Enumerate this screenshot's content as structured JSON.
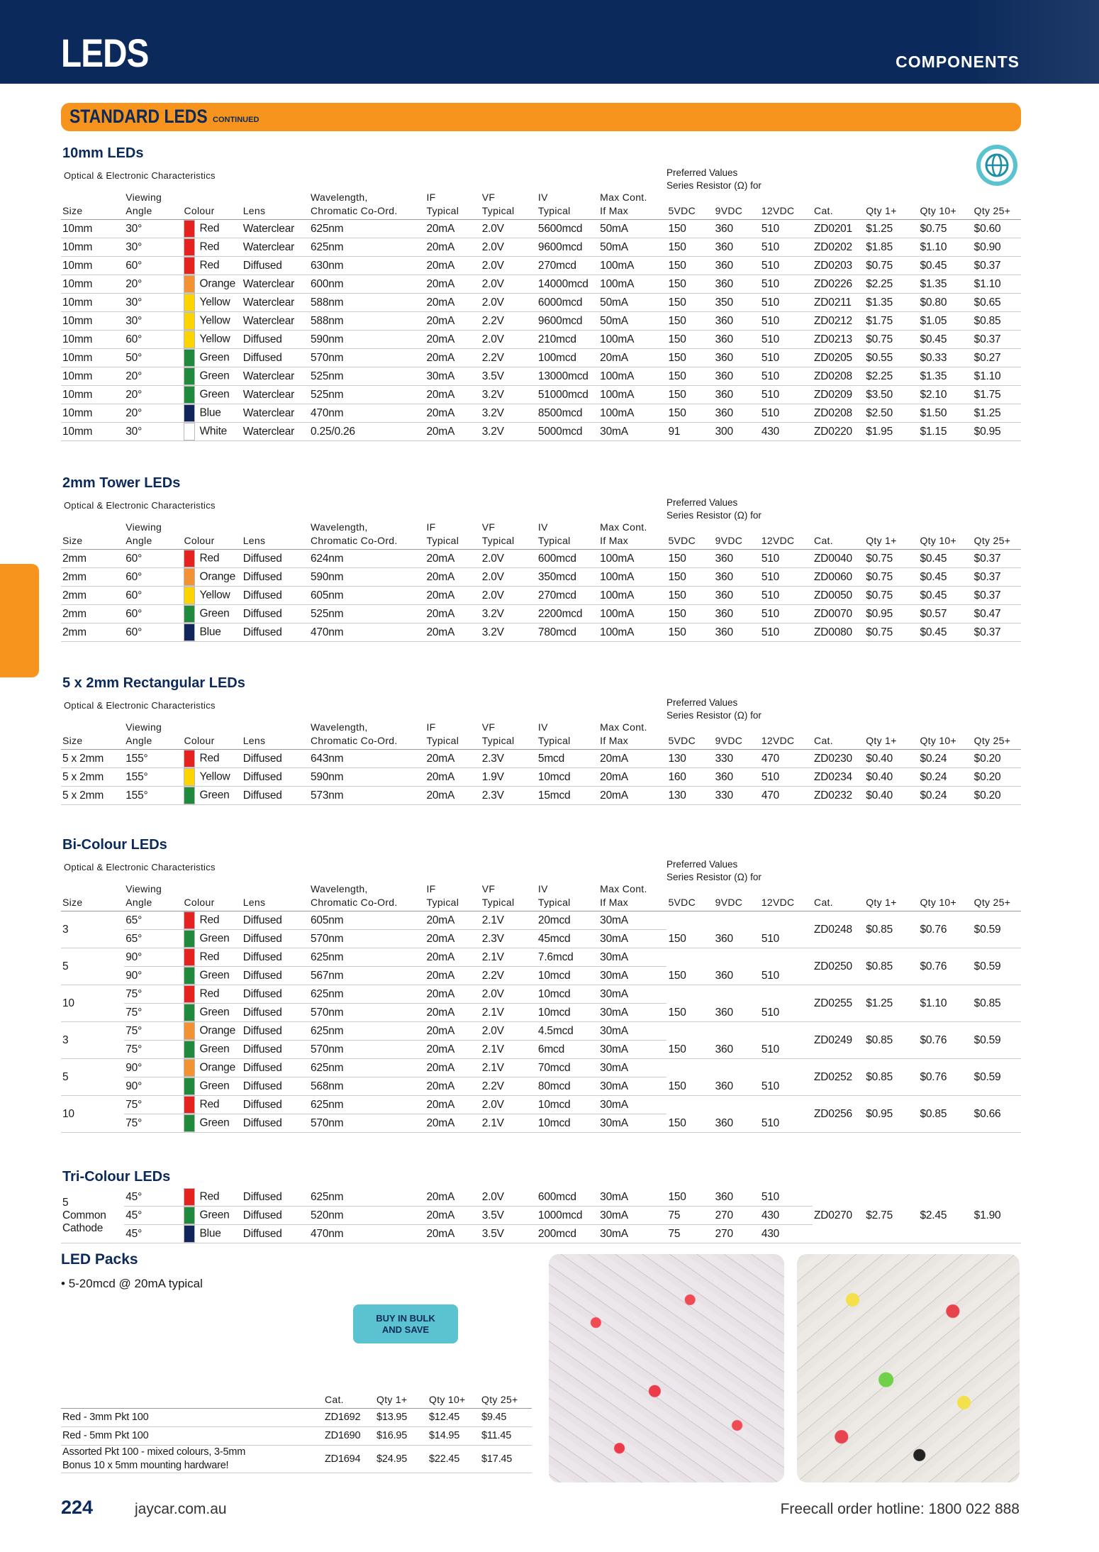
{
  "header": {
    "title": "LEDS",
    "section": "COMPONENTS"
  },
  "banner": {
    "title": "STANDARD LEDS",
    "note": "CONTINUED"
  },
  "sections": [
    {
      "title": "10mm LEDs",
      "subtitle": "Optical & Electronic Characteristics",
      "preferred": "Preferred Values\nSeries Resistor (Ω) for",
      "headers": [
        "Size",
        "Viewing\nAngle",
        "Colour",
        "Lens",
        "Wavelength,\nChromatic Co-Ord.",
        "IF\nTypical",
        "VF\nTypical",
        "IV\nTypical",
        "Max Cont.\nIf Max",
        "5VDC",
        "9VDC",
        "12VDC",
        "Cat.",
        "Qty 1+",
        "Qty 10+",
        "Qty 25+"
      ],
      "rows": [
        {
          "swatch": "#e42320",
          "cells": [
            "10mm",
            "30°",
            "Red",
            "Waterclear",
            "625nm",
            "20mA",
            "2.0V",
            "5600mcd",
            "50mA",
            "150",
            "360",
            "510",
            "ZD0201",
            "$1.25",
            "$0.75",
            "$0.60"
          ]
        },
        {
          "swatch": "#e42320",
          "cells": [
            "10mm",
            "30°",
            "Red",
            "Waterclear",
            "625nm",
            "20mA",
            "2.0V",
            "9600mcd",
            "50mA",
            "150",
            "360",
            "510",
            "ZD0202",
            "$1.85",
            "$1.10",
            "$0.90"
          ]
        },
        {
          "swatch": "#e42320",
          "cells": [
            "10mm",
            "60°",
            "Red",
            "Diffused",
            "630nm",
            "20mA",
            "2.0V",
            "270mcd",
            "100mA",
            "150",
            "360",
            "510",
            "ZD0203",
            "$0.75",
            "$0.45",
            "$0.37"
          ]
        },
        {
          "swatch": "#f39233",
          "cells": [
            "10mm",
            "20°",
            "Orange",
            "Waterclear",
            "600nm",
            "20mA",
            "2.0V",
            "14000mcd",
            "100mA",
            "150",
            "360",
            "510",
            "ZD0226",
            "$2.25",
            "$1.35",
            "$1.10"
          ]
        },
        {
          "swatch": "#fcd500",
          "cells": [
            "10mm",
            "30°",
            "Yellow",
            "Waterclear",
            "588nm",
            "20mA",
            "2.0V",
            "6000mcd",
            "50mA",
            "150",
            "350",
            "510",
            "ZD0211",
            "$1.35",
            "$0.80",
            "$0.65"
          ]
        },
        {
          "swatch": "#fcd500",
          "cells": [
            "10mm",
            "30°",
            "Yellow",
            "Waterclear",
            "588nm",
            "20mA",
            "2.2V",
            "9600mcd",
            "50mA",
            "150",
            "360",
            "510",
            "ZD0212",
            "$1.75",
            "$1.05",
            "$0.85"
          ]
        },
        {
          "swatch": "#fcd500",
          "cells": [
            "10mm",
            "60°",
            "Yellow",
            "Diffused",
            "590nm",
            "20mA",
            "2.0V",
            "210mcd",
            "100mA",
            "150",
            "360",
            "510",
            "ZD0213",
            "$0.75",
            "$0.45",
            "$0.37"
          ]
        },
        {
          "swatch": "#1f8a3c",
          "cells": [
            "10mm",
            "50°",
            "Green",
            "Diffused",
            "570nm",
            "20mA",
            "2.2V",
            "100mcd",
            "20mA",
            "150",
            "360",
            "510",
            "ZD0205",
            "$0.55",
            "$0.33",
            "$0.27"
          ]
        },
        {
          "swatch": "#1f8a3c",
          "cells": [
            "10mm",
            "20°",
            "Green",
            "Waterclear",
            "525nm",
            "30mA",
            "3.5V",
            "13000mcd",
            "100mA",
            "150",
            "360",
            "510",
            "ZD0208",
            "$2.25",
            "$1.35",
            "$1.10"
          ]
        },
        {
          "swatch": "#1f8a3c",
          "cells": [
            "10mm",
            "20°",
            "Green",
            "Waterclear",
            "525nm",
            "20mA",
            "3.2V",
            "51000mcd",
            "100mA",
            "150",
            "360",
            "510",
            "ZD0209",
            "$3.50",
            "$2.10",
            "$1.75"
          ]
        },
        {
          "swatch": "#10265a",
          "cells": [
            "10mm",
            "20°",
            "Blue",
            "Waterclear",
            "470nm",
            "20mA",
            "3.2V",
            "8500mcd",
            "100mA",
            "150",
            "360",
            "510",
            "ZD0208",
            "$2.50",
            "$1.50",
            "$1.25"
          ]
        },
        {
          "swatch": "#ffffff",
          "cells": [
            "10mm",
            "30°",
            "White",
            "Waterclear",
            "0.25/0.26",
            "20mA",
            "3.2V",
            "5000mcd",
            "30mA",
            "91",
            "300",
            "430",
            "ZD0220",
            "$1.95",
            "$1.15",
            "$0.95"
          ]
        }
      ]
    },
    {
      "title": "2mm Tower LEDs",
      "subtitle": "Optical & Electronic Characteristics",
      "preferred": "Preferred Values\nSeries Resistor (Ω) for",
      "headers": [
        "Size",
        "Viewing\nAngle",
        "Colour",
        "Lens",
        "Wavelength,\nChromatic Co-Ord.",
        "IF\nTypical",
        "VF\nTypical",
        "IV\nTypical",
        "Max Cont.\nIf Max",
        "5VDC",
        "9VDC",
        "12VDC",
        "Cat.",
        "Qty 1+",
        "Qty 10+",
        "Qty 25+"
      ],
      "rows": [
        {
          "swatch": "#e42320",
          "cells": [
            "2mm",
            "60°",
            "Red",
            "Diffused",
            "624nm",
            "20mA",
            "2.0V",
            "600mcd",
            "100mA",
            "150",
            "360",
            "510",
            "ZD0040",
            "$0.75",
            "$0.45",
            "$0.37"
          ]
        },
        {
          "swatch": "#f39233",
          "cells": [
            "2mm",
            "60°",
            "Orange",
            "Diffused",
            "590nm",
            "20mA",
            "2.0V",
            "350mcd",
            "100mA",
            "150",
            "360",
            "510",
            "ZD0060",
            "$0.75",
            "$0.45",
            "$0.37"
          ]
        },
        {
          "swatch": "#fcd500",
          "cells": [
            "2mm",
            "60°",
            "Yellow",
            "Diffused",
            "605nm",
            "20mA",
            "2.0V",
            "270mcd",
            "100mA",
            "150",
            "360",
            "510",
            "ZD0050",
            "$0.75",
            "$0.45",
            "$0.37"
          ]
        },
        {
          "swatch": "#1f8a3c",
          "cells": [
            "2mm",
            "60°",
            "Green",
            "Diffused",
            "525nm",
            "20mA",
            "3.2V",
            "2200mcd",
            "100mA",
            "150",
            "360",
            "510",
            "ZD0070",
            "$0.95",
            "$0.57",
            "$0.47"
          ]
        },
        {
          "swatch": "#10265a",
          "cells": [
            "2mm",
            "60°",
            "Blue",
            "Diffused",
            "470nm",
            "20mA",
            "3.2V",
            "780mcd",
            "100mA",
            "150",
            "360",
            "510",
            "ZD0080",
            "$0.75",
            "$0.45",
            "$0.37"
          ]
        }
      ]
    },
    {
      "title": "5 x 2mm Rectangular LEDs",
      "subtitle": "Optical & Electronic Characteristics",
      "preferred": "Preferred Values\nSeries Resistor (Ω) for",
      "headers": [
        "Size",
        "Viewing\nAngle",
        "Colour",
        "Lens",
        "Wavelength,\nChromatic Co-Ord.",
        "IF\nTypical",
        "VF\nTypical",
        "IV\nTypical",
        "Max Cont.\nIf Max",
        "5VDC",
        "9VDC",
        "12VDC",
        "Cat.",
        "Qty 1+",
        "Qty 10+",
        "Qty 25+"
      ],
      "rows": [
        {
          "swatch": "#e42320",
          "cells": [
            "5 x 2mm",
            "155°",
            "Red",
            "Diffused",
            "643nm",
            "20mA",
            "2.3V",
            "5mcd",
            "20mA",
            "130",
            "330",
            "470",
            "ZD0230",
            "$0.40",
            "$0.24",
            "$0.20"
          ]
        },
        {
          "swatch": "#fcd500",
          "cells": [
            "5 x 2mm",
            "155°",
            "Yellow",
            "Diffused",
            "590nm",
            "20mA",
            "1.9V",
            "10mcd",
            "20mA",
            "160",
            "360",
            "510",
            "ZD0234",
            "$0.40",
            "$0.24",
            "$0.20"
          ]
        },
        {
          "swatch": "#1f8a3c",
          "cells": [
            "5 x 2mm",
            "155°",
            "Green",
            "Diffused",
            "573nm",
            "20mA",
            "2.3V",
            "15mcd",
            "20mA",
            "130",
            "330",
            "470",
            "ZD0232",
            "$0.40",
            "$0.24",
            "$0.20"
          ]
        }
      ]
    },
    {
      "title": "Bi-Colour LEDs",
      "subtitle": "Optical & Electronic Characteristics",
      "preferred": "Preferred Values\nSeries Resistor (Ω) for",
      "headers": [
        "Size",
        "Viewing\nAngle",
        "Colour",
        "Lens",
        "Wavelength,\nChromatic Co-Ord.",
        "IF\nTypical",
        "VF\nTypical",
        "IV\nTypical",
        "Max Cont.\nIf Max",
        "5VDC",
        "9VDC",
        "12VDC",
        "Cat.",
        "Qty 1+",
        "Qty 10+",
        "Qty 25+"
      ],
      "groups": [
        {
          "size": "3",
          "cat": "ZD0248",
          "prices": [
            "$0.85",
            "$0.76",
            "$0.59"
          ],
          "rows": [
            {
              "swatch": "#e42320",
              "cells": [
                "65°",
                "Red",
                "Diffused",
                "605nm",
                "20mA",
                "2.1V",
                "20mcd",
                "30mA"
              ]
            },
            {
              "swatch": "#1f8a3c",
              "cells": [
                "65°",
                "Green",
                "Diffused",
                "570nm",
                "20mA",
                "2.3V",
                "45mcd",
                "30mA"
              ],
              "resistors": [
                "150",
                "360",
                "510"
              ]
            }
          ]
        },
        {
          "size": "5",
          "cat": "ZD0250",
          "prices": [
            "$0.85",
            "$0.76",
            "$0.59"
          ],
          "rows": [
            {
              "swatch": "#e42320",
              "cells": [
                "90°",
                "Red",
                "Diffused",
                "625nm",
                "20mA",
                "2.1V",
                "7.6mcd",
                "30mA"
              ]
            },
            {
              "swatch": "#1f8a3c",
              "cells": [
                "90°",
                "Green",
                "Diffused",
                "567nm",
                "20mA",
                "2.2V",
                "10mcd",
                "30mA"
              ],
              "resistors": [
                "150",
                "360",
                "510"
              ]
            }
          ]
        },
        {
          "size": "10",
          "cat": "ZD0255",
          "prices": [
            "$1.25",
            "$1.10",
            "$0.85"
          ],
          "rows": [
            {
              "swatch": "#e42320",
              "cells": [
                "75°",
                "Red",
                "Diffused",
                "625nm",
                "20mA",
                "2.0V",
                "10mcd",
                "30mA"
              ]
            },
            {
              "swatch": "#1f8a3c",
              "cells": [
                "75°",
                "Green",
                "Diffused",
                "570nm",
                "20mA",
                "2.1V",
                "10mcd",
                "30mA"
              ],
              "resistors": [
                "150",
                "360",
                "510"
              ]
            }
          ]
        },
        {
          "size": "3",
          "cat": "ZD0249",
          "prices": [
            "$0.85",
            "$0.76",
            "$0.59"
          ],
          "rows": [
            {
              "swatch": "#f39233",
              "cells": [
                "75°",
                "Orange",
                "Diffused",
                "625nm",
                "20mA",
                "2.0V",
                "4.5mcd",
                "30mA"
              ]
            },
            {
              "swatch": "#1f8a3c",
              "cells": [
                "75°",
                "Green",
                "Diffused",
                "570nm",
                "20mA",
                "2.1V",
                "6mcd",
                "30mA"
              ],
              "resistors": [
                "150",
                "360",
                "510"
              ]
            }
          ]
        },
        {
          "size": "5",
          "cat": "ZD0252",
          "prices": [
            "$0.85",
            "$0.76",
            "$0.59"
          ],
          "rows": [
            {
              "swatch": "#f39233",
              "cells": [
                "90°",
                "Orange",
                "Diffused",
                "625nm",
                "20mA",
                "2.1V",
                "70mcd",
                "30mA"
              ]
            },
            {
              "swatch": "#1f8a3c",
              "cells": [
                "90°",
                "Green",
                "Diffused",
                "568nm",
                "20mA",
                "2.2V",
                "80mcd",
                "30mA"
              ],
              "resistors": [
                "150",
                "360",
                "510"
              ]
            }
          ]
        },
        {
          "size": "10",
          "cat": "ZD0256",
          "prices": [
            "$0.95",
            "$0.85",
            "$0.66"
          ],
          "rows": [
            {
              "swatch": "#e42320",
              "cells": [
                "75°",
                "Red",
                "Diffused",
                "625nm",
                "20mA",
                "2.0V",
                "10mcd",
                "30mA"
              ]
            },
            {
              "swatch": "#1f8a3c",
              "cells": [
                "75°",
                "Green",
                "Diffused",
                "570nm",
                "20mA",
                "2.1V",
                "10mcd",
                "30mA"
              ],
              "resistors": [
                "150",
                "360",
                "510"
              ]
            }
          ]
        }
      ]
    },
    {
      "title": "Tri-Colour LEDs",
      "groups": [
        {
          "size": "5\nCommon\nCathode",
          "cat": "ZD0270",
          "prices": [
            "$2.75",
            "$2.45",
            "$1.90"
          ],
          "rows": [
            {
              "swatch": "#e42320",
              "cells": [
                "45°",
                "Red",
                "Diffused",
                "625nm",
                "20mA",
                "2.0V",
                "600mcd",
                "30mA"
              ],
              "resistors": [
                "150",
                "360",
                "510"
              ]
            },
            {
              "swatch": "#1f8a3c",
              "cells": [
                "45°",
                "Green",
                "Diffused",
                "520nm",
                "20mA",
                "3.5V",
                "1000mcd",
                "30mA"
              ],
              "resistors": [
                "75",
                "270",
                "430"
              ]
            },
            {
              "swatch": "#10265a",
              "cells": [
                "45°",
                "Blue",
                "Diffused",
                "470nm",
                "20mA",
                "3.5V",
                "200mcd",
                "30mA"
              ],
              "resistors": [
                "75",
                "270",
                "430"
              ]
            }
          ]
        }
      ]
    }
  ],
  "packs": {
    "title": "LED Packs",
    "bullet": "5-20mcd @ 20mA typical",
    "badge": "BUY IN BULK\nAND SAVE",
    "headers": [
      "Cat.",
      "Qty 1+",
      "Qty 10+",
      "Qty 25+"
    ],
    "rows": [
      [
        "Red - 3mm Pkt 100",
        "ZD1692",
        "$13.95",
        "$12.45",
        "$9.45"
      ],
      [
        "Red - 5mm Pkt 100",
        "ZD1690",
        "$16.95",
        "$14.95",
        "$11.45"
      ],
      [
        "Assorted Pkt 100 - mixed colours, 3-5mm\nBonus 10 x 5mm mounting hardware!",
        "ZD1694",
        "$24.95",
        "$22.45",
        "$17.45"
      ]
    ]
  },
  "footer": {
    "page": "224",
    "site": "jaycar.com.au",
    "hotline": "Freecall order hotline: 1800 022 888"
  }
}
